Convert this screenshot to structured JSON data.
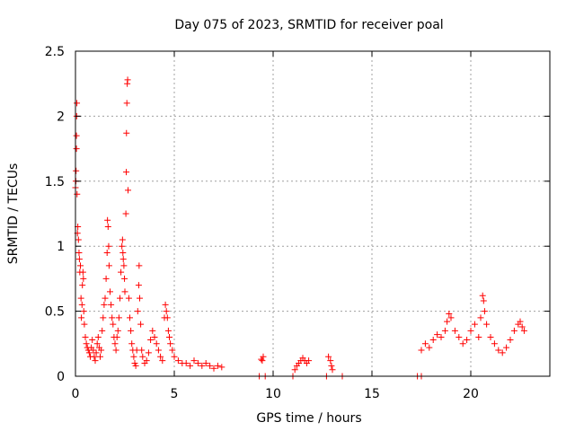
{
  "chart_data": {
    "type": "scatter",
    "title": "Day 075 of 2023, SRMTID for receiver poal",
    "xlabel": "GPS time / hours",
    "ylabel": "SRMTID / TECUs",
    "xlim": [
      0,
      24
    ],
    "ylim": [
      0,
      2.5
    ],
    "xticks": [
      0,
      5,
      10,
      15,
      20
    ],
    "yticks": [
      0,
      0.5,
      1,
      1.5,
      2,
      2.5
    ],
    "xtick_labels": [
      "0",
      "5",
      "10",
      "15",
      "20"
    ],
    "ytick_labels": [
      "0",
      "0.5",
      "1",
      "1.5",
      "2",
      "2.5"
    ],
    "grid": true,
    "marker": "+",
    "color": "#ff0000",
    "series": [
      {
        "name": "poal",
        "points": [
          [
            0.0,
            1.45
          ],
          [
            0.02,
            1.5
          ],
          [
            0.03,
            1.58
          ],
          [
            0.05,
            1.75
          ],
          [
            0.05,
            1.85
          ],
          [
            0.06,
            2.0
          ],
          [
            0.07,
            2.1
          ],
          [
            0.08,
            1.4
          ],
          [
            0.1,
            1.1
          ],
          [
            0.12,
            1.15
          ],
          [
            0.15,
            1.05
          ],
          [
            0.18,
            0.95
          ],
          [
            0.2,
            0.9
          ],
          [
            0.22,
            0.8
          ],
          [
            0.25,
            0.85
          ],
          [
            0.28,
            0.6
          ],
          [
            0.3,
            0.45
          ],
          [
            0.33,
            0.55
          ],
          [
            0.35,
            0.7
          ],
          [
            0.38,
            0.8
          ],
          [
            0.4,
            0.75
          ],
          [
            0.42,
            0.5
          ],
          [
            0.45,
            0.4
          ],
          [
            0.5,
            0.3
          ],
          [
            0.55,
            0.25
          ],
          [
            0.6,
            0.22
          ],
          [
            0.65,
            0.2
          ],
          [
            0.7,
            0.18
          ],
          [
            0.75,
            0.15
          ],
          [
            0.8,
            0.22
          ],
          [
            0.85,
            0.28
          ],
          [
            0.9,
            0.2
          ],
          [
            0.95,
            0.15
          ],
          [
            1.0,
            0.12
          ],
          [
            1.05,
            0.18
          ],
          [
            1.1,
            0.25
          ],
          [
            1.15,
            0.3
          ],
          [
            1.2,
            0.22
          ],
          [
            1.25,
            0.15
          ],
          [
            1.3,
            0.2
          ],
          [
            1.35,
            0.35
          ],
          [
            1.4,
            0.45
          ],
          [
            1.45,
            0.55
          ],
          [
            1.5,
            0.6
          ],
          [
            1.55,
            0.75
          ],
          [
            1.6,
            0.95
          ],
          [
            1.62,
            1.2
          ],
          [
            1.65,
            1.15
          ],
          [
            1.68,
            1.0
          ],
          [
            1.7,
            0.85
          ],
          [
            1.75,
            0.65
          ],
          [
            1.8,
            0.55
          ],
          [
            1.85,
            0.45
          ],
          [
            1.9,
            0.4
          ],
          [
            1.95,
            0.3
          ],
          [
            2.0,
            0.25
          ],
          [
            2.05,
            0.2
          ],
          [
            2.1,
            0.3
          ],
          [
            2.15,
            0.35
          ],
          [
            2.2,
            0.45
          ],
          [
            2.25,
            0.6
          ],
          [
            2.3,
            0.8
          ],
          [
            2.35,
            1.0
          ],
          [
            2.38,
            1.05
          ],
          [
            2.4,
            0.95
          ],
          [
            2.42,
            0.9
          ],
          [
            2.45,
            0.85
          ],
          [
            2.48,
            0.75
          ],
          [
            2.5,
            0.65
          ],
          [
            2.55,
            1.25
          ],
          [
            2.57,
            1.57
          ],
          [
            2.58,
            1.87
          ],
          [
            2.6,
            2.1
          ],
          [
            2.62,
            2.25
          ],
          [
            2.64,
            2.28
          ],
          [
            2.66,
            1.43
          ],
          [
            2.7,
            0.6
          ],
          [
            2.75,
            0.45
          ],
          [
            2.8,
            0.35
          ],
          [
            2.85,
            0.25
          ],
          [
            2.9,
            0.2
          ],
          [
            2.95,
            0.15
          ],
          [
            3.0,
            0.1
          ],
          [
            3.05,
            0.08
          ],
          [
            3.1,
            0.2
          ],
          [
            3.15,
            0.5
          ],
          [
            3.2,
            0.7
          ],
          [
            3.22,
            0.85
          ],
          [
            3.25,
            0.6
          ],
          [
            3.3,
            0.4
          ],
          [
            3.35,
            0.2
          ],
          [
            3.4,
            0.15
          ],
          [
            3.5,
            0.1
          ],
          [
            3.6,
            0.12
          ],
          [
            3.7,
            0.18
          ],
          [
            3.8,
            0.28
          ],
          [
            3.9,
            0.35
          ],
          [
            4.0,
            0.3
          ],
          [
            4.1,
            0.25
          ],
          [
            4.2,
            0.2
          ],
          [
            4.3,
            0.15
          ],
          [
            4.4,
            0.12
          ],
          [
            4.5,
            0.45
          ],
          [
            4.55,
            0.55
          ],
          [
            4.6,
            0.5
          ],
          [
            4.65,
            0.45
          ],
          [
            4.7,
            0.35
          ],
          [
            4.75,
            0.3
          ],
          [
            4.8,
            0.25
          ],
          [
            4.9,
            0.2
          ],
          [
            5.0,
            0.15
          ],
          [
            5.2,
            0.12
          ],
          [
            5.4,
            0.1
          ],
          [
            5.6,
            0.1
          ],
          [
            5.8,
            0.08
          ],
          [
            6.0,
            0.12
          ],
          [
            6.2,
            0.1
          ],
          [
            6.4,
            0.08
          ],
          [
            6.6,
            0.1
          ],
          [
            6.8,
            0.08
          ],
          [
            7.0,
            0.06
          ],
          [
            7.2,
            0.08
          ],
          [
            7.4,
            0.07
          ],
          [
            9.4,
            0.13
          ],
          [
            9.5,
            0.15
          ],
          [
            9.45,
            0.12
          ],
          [
            9.3,
            0.0
          ],
          [
            9.6,
            0.0
          ],
          [
            11.0,
            0.0
          ],
          [
            11.1,
            0.05
          ],
          [
            11.2,
            0.08
          ],
          [
            11.3,
            0.1
          ],
          [
            11.4,
            0.12
          ],
          [
            11.5,
            0.14
          ],
          [
            11.6,
            0.12
          ],
          [
            11.7,
            0.1
          ],
          [
            11.8,
            0.12
          ],
          [
            12.7,
            0.0
          ],
          [
            12.8,
            0.15
          ],
          [
            12.9,
            0.12
          ],
          [
            12.95,
            0.08
          ],
          [
            13.0,
            0.05
          ],
          [
            13.5,
            0.0
          ],
          [
            17.3,
            0.0
          ],
          [
            17.5,
            0.0
          ],
          [
            17.5,
            0.2
          ],
          [
            17.7,
            0.25
          ],
          [
            17.9,
            0.22
          ],
          [
            18.1,
            0.28
          ],
          [
            18.3,
            0.32
          ],
          [
            18.5,
            0.3
          ],
          [
            18.7,
            0.35
          ],
          [
            18.8,
            0.42
          ],
          [
            18.9,
            0.48
          ],
          [
            19.0,
            0.45
          ],
          [
            19.2,
            0.35
          ],
          [
            19.4,
            0.3
          ],
          [
            19.6,
            0.25
          ],
          [
            19.8,
            0.28
          ],
          [
            20.0,
            0.35
          ],
          [
            20.2,
            0.4
          ],
          [
            20.4,
            0.3
          ],
          [
            20.5,
            0.45
          ],
          [
            20.6,
            0.62
          ],
          [
            20.65,
            0.58
          ],
          [
            20.7,
            0.5
          ],
          [
            20.8,
            0.4
          ],
          [
            21.0,
            0.3
          ],
          [
            21.2,
            0.25
          ],
          [
            21.4,
            0.2
          ],
          [
            21.6,
            0.18
          ],
          [
            21.8,
            0.22
          ],
          [
            22.0,
            0.28
          ],
          [
            22.2,
            0.35
          ],
          [
            22.4,
            0.4
          ],
          [
            22.5,
            0.42
          ],
          [
            22.6,
            0.38
          ],
          [
            22.7,
            0.35
          ]
        ]
      }
    ]
  }
}
